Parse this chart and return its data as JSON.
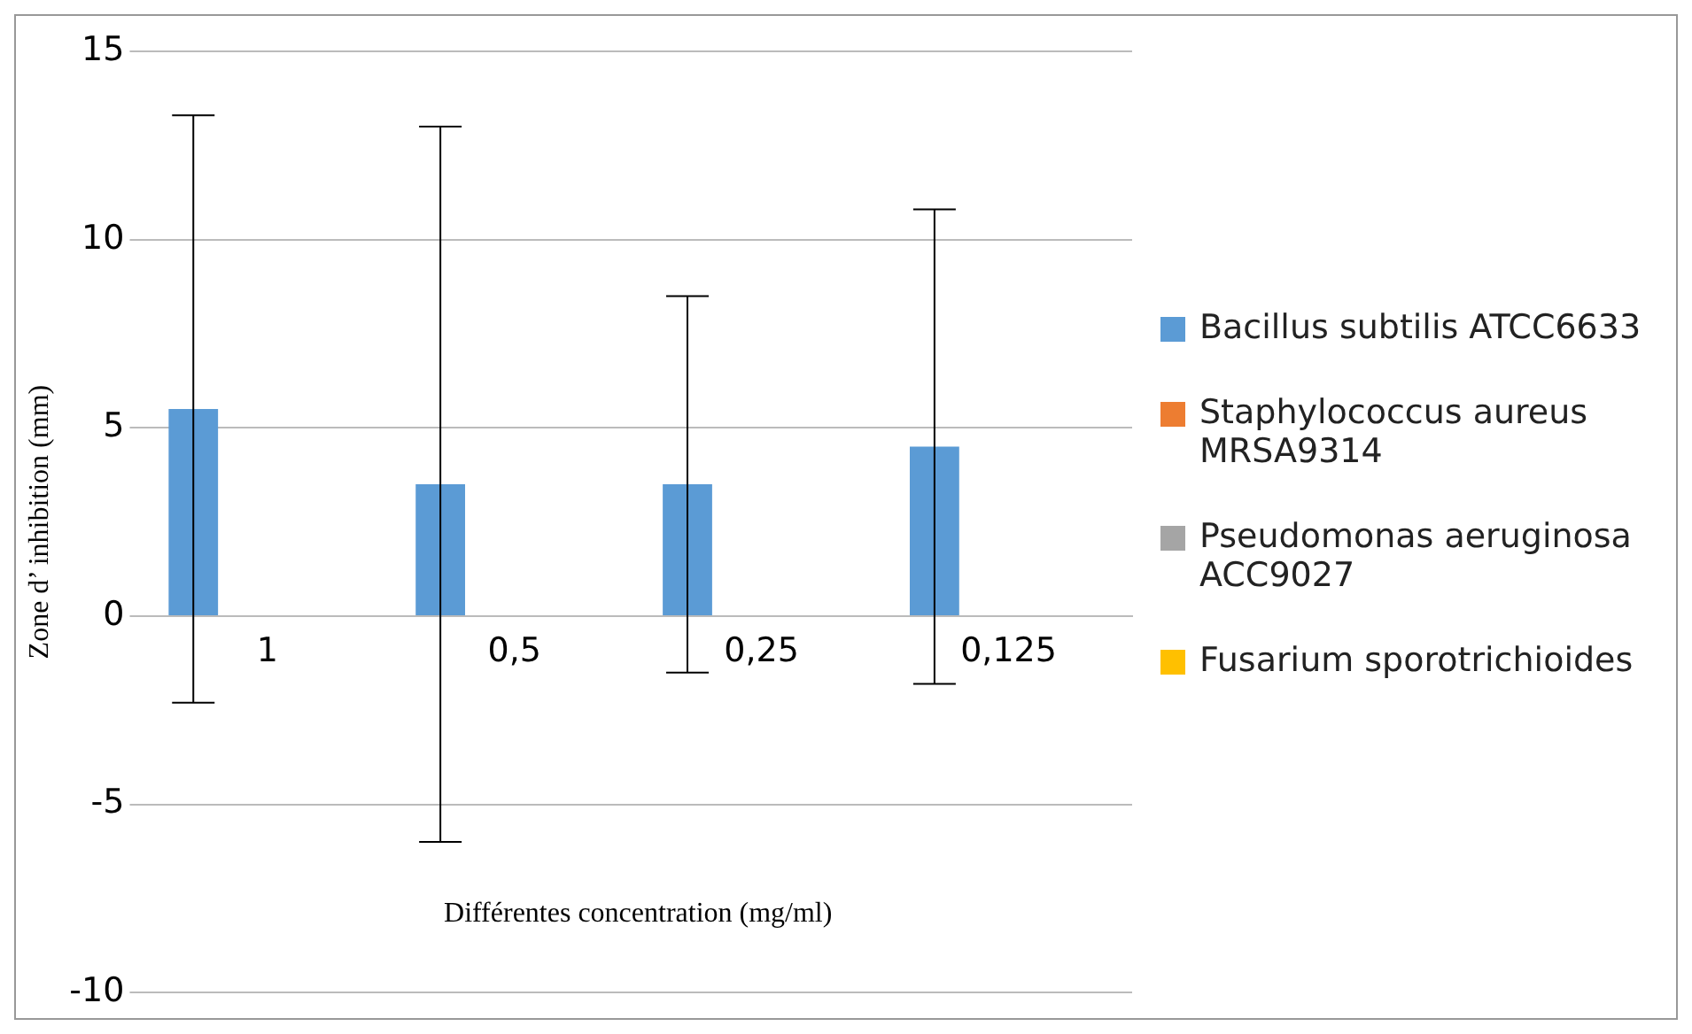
{
  "chart_data": {
    "type": "bar",
    "xlabel": "Différentes concentration (mg/ml)",
    "ylabel": "Zone d’ inhibition (mm)",
    "categories": [
      "1",
      "0,5",
      "0,25",
      "0,125"
    ],
    "series": [
      {
        "name": "Bacillus subtilis ATCC6633",
        "color": "#5b9bd5",
        "values": [
          5.5,
          3.5,
          3.5,
          4.5
        ],
        "errors": [
          7.8,
          9.5,
          5.0,
          6.3
        ]
      },
      {
        "name": "Staphylococcus aureus MRSA9314",
        "color": "#ed7d31",
        "values": [
          0,
          0,
          0,
          0
        ]
      },
      {
        "name": "Pseudomonas aeruginosa ACC9027",
        "color": "#a5a5a5",
        "values": [
          0,
          0,
          0,
          0
        ]
      },
      {
        "name": "Fusarium sporotrichioides",
        "color": "#ffc000",
        "values": [
          0,
          0,
          0,
          0
        ]
      }
    ],
    "ylim": [
      -10,
      15
    ],
    "yticks": [
      -10,
      -5,
      0,
      5,
      10,
      15
    ],
    "grid": "y",
    "legend": "right"
  }
}
